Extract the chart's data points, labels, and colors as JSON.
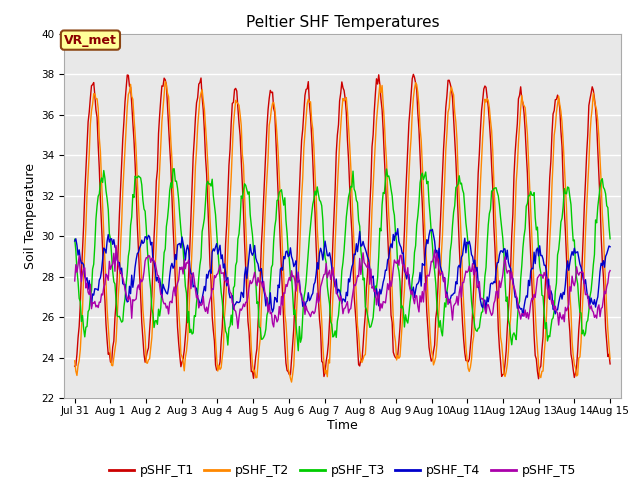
{
  "title": "Peltier SHF Temperatures",
  "xlabel": "Time",
  "ylabel": "Soil Temperature",
  "ylim": [
    22,
    40
  ],
  "yticks": [
    22,
    24,
    26,
    28,
    30,
    32,
    34,
    36,
    38,
    40
  ],
  "xlim_days": [
    -0.3,
    15.3
  ],
  "xtick_labels": [
    "Jul 31",
    "Aug 1",
    "Aug 2",
    "Aug 3",
    "Aug 4",
    "Aug 5",
    "Aug 6",
    "Aug 7",
    "Aug 8",
    "Aug 9",
    "Aug 10",
    "Aug 11",
    "Aug 12",
    "Aug 13",
    "Aug 14",
    "Aug 15"
  ],
  "xtick_positions": [
    0,
    1,
    2,
    3,
    4,
    5,
    6,
    7,
    8,
    9,
    10,
    11,
    12,
    13,
    14,
    15
  ],
  "line_colors": [
    "#cc0000",
    "#ff8800",
    "#00cc00",
    "#0000cc",
    "#aa00aa"
  ],
  "line_labels": [
    "pSHF_T1",
    "pSHF_T2",
    "pSHF_T3",
    "pSHF_T4",
    "pSHF_T5"
  ],
  "annotation_text": "VR_met",
  "bg_color": "#e8e8e8",
  "fig_color": "#ffffff",
  "grid_color": "#ffffff",
  "title_fontsize": 11,
  "axis_label_fontsize": 9,
  "tick_fontsize": 7.5,
  "legend_fontsize": 9,
  "T1_base": 30.5,
  "T1_amp": 7.0,
  "T1_phase": 0.0,
  "T2_base": 30.2,
  "T2_amp": 6.8,
  "T2_phase": 0.06,
  "T3_base": 29.0,
  "T3_amp": 3.7,
  "T3_phase": 0.28,
  "T4_base": 28.2,
  "T4_amp": 1.4,
  "T4_phase": 0.5,
  "T5_base": 27.4,
  "T5_amp": 1.1,
  "T5_phase": 0.6
}
